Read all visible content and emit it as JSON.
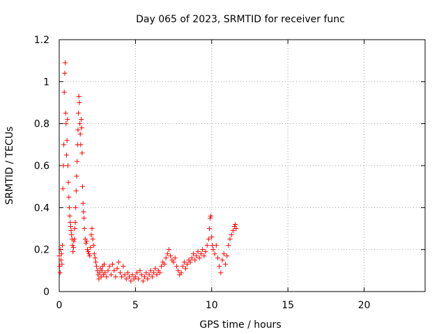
{
  "chart_data": {
    "type": "scatter",
    "title": "Day 065 of 2023, SRMTID for receiver func",
    "xlabel": "GPS time / hours",
    "ylabel": "SRMTID / TECUs",
    "xlim": [
      0,
      24
    ],
    "ylim": [
      0,
      1.2
    ],
    "xticks": [
      0,
      5,
      10,
      15,
      20
    ],
    "xtick_labels": [
      "0",
      "5",
      "10",
      "15",
      "20"
    ],
    "yticks": [
      0,
      0.2,
      0.4,
      0.6,
      0.8,
      1.0,
      1.2
    ],
    "ytick_labels": [
      "0",
      "0.2",
      "0.4",
      "0.6",
      "0.8",
      "1",
      "1.2"
    ],
    "grid": true,
    "marker": "+",
    "series": [
      {
        "name": "SRMTID",
        "color": "#ff0000",
        "points": [
          [
            0.0,
            0.17
          ],
          [
            0.03,
            0.12
          ],
          [
            0.06,
            0.09
          ],
          [
            0.09,
            0.2
          ],
          [
            0.12,
            0.15
          ],
          [
            0.15,
            0.18
          ],
          [
            0.18,
            0.13
          ],
          [
            0.21,
            0.22
          ],
          [
            0.24,
            0.49
          ],
          [
            0.27,
            0.6
          ],
          [
            0.3,
            0.7
          ],
          [
            0.33,
            0.95
          ],
          [
            0.36,
            1.04
          ],
          [
            0.39,
            1.09
          ],
          [
            0.42,
            0.85
          ],
          [
            0.45,
            0.8
          ],
          [
            0.48,
            0.65
          ],
          [
            0.51,
            0.72
          ],
          [
            0.54,
            0.82
          ],
          [
            0.57,
            0.6
          ],
          [
            0.6,
            0.52
          ],
          [
            0.63,
            0.45
          ],
          [
            0.66,
            0.4
          ],
          [
            0.69,
            0.36
          ],
          [
            0.72,
            0.33
          ],
          [
            0.75,
            0.31
          ],
          [
            0.78,
            0.29
          ],
          [
            0.81,
            0.27
          ],
          [
            0.84,
            0.25
          ],
          [
            0.87,
            0.22
          ],
          [
            0.9,
            0.19
          ],
          [
            0.93,
            0.21
          ],
          [
            0.96,
            0.24
          ],
          [
            0.99,
            0.25
          ],
          [
            1.02,
            0.3
          ],
          [
            1.05,
            0.33
          ],
          [
            1.08,
            0.4
          ],
          [
            1.11,
            0.48
          ],
          [
            1.14,
            0.55
          ],
          [
            1.17,
            0.62
          ],
          [
            1.2,
            0.7
          ],
          [
            1.23,
            0.77
          ],
          [
            1.26,
            0.85
          ],
          [
            1.29,
            0.93
          ],
          [
            1.32,
            0.9
          ],
          [
            1.35,
            0.8
          ],
          [
            1.38,
            0.75
          ],
          [
            1.41,
            0.7
          ],
          [
            1.44,
            0.82
          ],
          [
            1.47,
            0.78
          ],
          [
            1.5,
            0.66
          ],
          [
            1.53,
            0.5
          ],
          [
            1.56,
            0.42
          ],
          [
            1.59,
            0.38
          ],
          [
            1.62,
            0.35
          ],
          [
            1.65,
            0.3
          ],
          [
            1.7,
            0.25
          ],
          [
            1.75,
            0.23
          ],
          [
            1.8,
            0.24
          ],
          [
            1.85,
            0.2
          ],
          [
            1.9,
            0.19
          ],
          [
            1.95,
            0.18
          ],
          [
            2.0,
            0.17
          ],
          [
            2.05,
            0.21
          ],
          [
            2.1,
            0.27
          ],
          [
            2.15,
            0.3
          ],
          [
            2.2,
            0.25
          ],
          [
            2.25,
            0.22
          ],
          [
            2.3,
            0.18
          ],
          [
            2.35,
            0.16
          ],
          [
            2.4,
            0.14
          ],
          [
            2.45,
            0.12
          ],
          [
            2.5,
            0.1
          ],
          [
            2.55,
            0.08
          ],
          [
            2.6,
            0.06
          ],
          [
            2.65,
            0.09
          ],
          [
            2.7,
            0.11
          ],
          [
            2.75,
            0.07
          ],
          [
            2.8,
            0.1
          ],
          [
            2.85,
            0.12
          ],
          [
            2.9,
            0.08
          ],
          [
            2.95,
            0.13
          ],
          [
            3.0,
            0.09
          ],
          [
            3.1,
            0.07
          ],
          [
            3.2,
            0.1
          ],
          [
            3.3,
            0.12
          ],
          [
            3.4,
            0.08
          ],
          [
            3.5,
            0.13
          ],
          [
            3.6,
            0.1
          ],
          [
            3.7,
            0.07
          ],
          [
            3.8,
            0.11
          ],
          [
            3.9,
            0.14
          ],
          [
            4.0,
            0.09
          ],
          [
            4.1,
            0.07
          ],
          [
            4.2,
            0.12
          ],
          [
            4.3,
            0.08
          ],
          [
            4.4,
            0.06
          ],
          [
            4.5,
            0.09
          ],
          [
            4.6,
            0.07
          ],
          [
            4.7,
            0.05
          ],
          [
            4.8,
            0.08
          ],
          [
            4.9,
            0.06
          ],
          [
            5.0,
            0.07
          ],
          [
            5.1,
            0.09
          ],
          [
            5.2,
            0.06
          ],
          [
            5.3,
            0.1
          ],
          [
            5.4,
            0.08
          ],
          [
            5.5,
            0.05
          ],
          [
            5.6,
            0.07
          ],
          [
            5.7,
            0.09
          ],
          [
            5.8,
            0.06
          ],
          [
            5.9,
            0.08
          ],
          [
            6.0,
            0.1
          ],
          [
            6.1,
            0.07
          ],
          [
            6.2,
            0.09
          ],
          [
            6.3,
            0.11
          ],
          [
            6.4,
            0.08
          ],
          [
            6.5,
            0.1
          ],
          [
            6.6,
            0.09
          ],
          [
            6.7,
            0.12
          ],
          [
            6.8,
            0.14
          ],
          [
            6.9,
            0.13
          ],
          [
            7.0,
            0.16
          ],
          [
            7.1,
            0.18
          ],
          [
            7.2,
            0.2
          ],
          [
            7.3,
            0.17
          ],
          [
            7.4,
            0.15
          ],
          [
            7.5,
            0.14
          ],
          [
            7.6,
            0.16
          ],
          [
            7.7,
            0.12
          ],
          [
            7.8,
            0.1
          ],
          [
            7.9,
            0.08
          ],
          [
            8.0,
            0.09
          ],
          [
            8.1,
            0.12
          ],
          [
            8.2,
            0.14
          ],
          [
            8.3,
            0.11
          ],
          [
            8.4,
            0.13
          ],
          [
            8.5,
            0.15
          ],
          [
            8.6,
            0.14
          ],
          [
            8.7,
            0.16
          ],
          [
            8.8,
            0.18
          ],
          [
            8.9,
            0.15
          ],
          [
            9.0,
            0.17
          ],
          [
            9.1,
            0.19
          ],
          [
            9.2,
            0.16
          ],
          [
            9.3,
            0.18
          ],
          [
            9.4,
            0.2
          ],
          [
            9.5,
            0.17
          ],
          [
            9.6,
            0.19
          ],
          [
            9.7,
            0.22
          ],
          [
            9.8,
            0.25
          ],
          [
            9.85,
            0.3
          ],
          [
            9.9,
            0.35
          ],
          [
            9.95,
            0.36
          ],
          [
            10.0,
            0.26
          ],
          [
            10.05,
            0.22
          ],
          [
            10.1,
            0.2
          ],
          [
            10.2,
            0.18
          ],
          [
            10.3,
            0.22
          ],
          [
            10.4,
            0.16
          ],
          [
            10.5,
            0.12
          ],
          [
            10.6,
            0.09
          ],
          [
            10.7,
            0.15
          ],
          [
            10.8,
            0.18
          ],
          [
            10.9,
            0.13
          ],
          [
            11.0,
            0.17
          ],
          [
            11.1,
            0.22
          ],
          [
            11.2,
            0.25
          ],
          [
            11.3,
            0.27
          ],
          [
            11.4,
            0.29
          ],
          [
            11.5,
            0.31
          ],
          [
            11.55,
            0.32
          ],
          [
            11.6,
            0.3
          ]
        ]
      }
    ]
  }
}
